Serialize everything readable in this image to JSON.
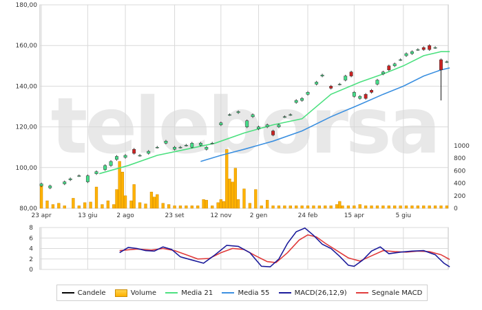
{
  "chart_data": [
    {
      "type": "line",
      "panel": "price",
      "title": "",
      "watermark": "teleborsa",
      "ylim": [
        80,
        180
      ],
      "y_ticks": [
        "80,00",
        "100,00",
        "120,00",
        "140,00",
        "160,00",
        "180,00"
      ],
      "volume_ylim": [
        0,
        1000
      ],
      "volume_ticks": [
        "0",
        "200",
        "400",
        "600",
        "800",
        "1000"
      ],
      "x_ticks": [
        "23 apr",
        "13 giu",
        "2 ago",
        "23 set",
        "12 nov",
        "2 gen",
        "24 feb",
        "15 apr",
        "5 giu"
      ],
      "x_tick_index": [
        0,
        16,
        29,
        46,
        62,
        75,
        92,
        108,
        125
      ],
      "n_bars": 141,
      "candles": [
        {
          "i": 0,
          "o": 91,
          "c": 92
        },
        {
          "i": 3,
          "o": 90,
          "c": 91
        },
        {
          "i": 8,
          "o": 92,
          "c": 93
        },
        {
          "i": 10,
          "o": 94,
          "c": 94.5
        },
        {
          "i": 13,
          "o": 96,
          "c": 96
        },
        {
          "i": 16,
          "o": 93,
          "c": 96
        },
        {
          "i": 19,
          "o": 97,
          "c": 98
        },
        {
          "i": 22,
          "o": 99,
          "c": 101
        },
        {
          "i": 24,
          "o": 101,
          "c": 103
        },
        {
          "i": 26,
          "o": 104,
          "c": 105.5
        },
        {
          "i": 29,
          "o": 105,
          "c": 106
        },
        {
          "i": 32,
          "o": 109,
          "c": 107
        },
        {
          "i": 34,
          "o": 106,
          "c": 106
        },
        {
          "i": 37,
          "o": 107,
          "c": 108
        },
        {
          "i": 40,
          "o": 110,
          "c": 110
        },
        {
          "i": 43,
          "o": 112,
          "c": 113
        },
        {
          "i": 46,
          "o": 109,
          "c": 110
        },
        {
          "i": 48,
          "o": 110,
          "c": 110
        },
        {
          "i": 50,
          "o": 111,
          "c": 111
        },
        {
          "i": 52,
          "o": 110,
          "c": 112
        },
        {
          "i": 55,
          "o": 111,
          "c": 112
        },
        {
          "i": 57,
          "o": 109,
          "c": 110
        },
        {
          "i": 59,
          "o": 112,
          "c": 112
        },
        {
          "i": 62,
          "o": 121,
          "c": 122
        },
        {
          "i": 65,
          "o": 126,
          "c": 126
        },
        {
          "i": 68,
          "o": 127,
          "c": 127.5
        },
        {
          "i": 71,
          "o": 120,
          "c": 123
        },
        {
          "i": 73,
          "o": 125,
          "c": 126
        },
        {
          "i": 75,
          "o": 119,
          "c": 120
        },
        {
          "i": 78,
          "o": 120,
          "c": 121
        },
        {
          "i": 80,
          "o": 118,
          "c": 116
        },
        {
          "i": 82,
          "o": 120,
          "c": 121
        },
        {
          "i": 84,
          "o": 125,
          "c": 125
        },
        {
          "i": 86,
          "o": 126,
          "c": 126
        },
        {
          "i": 88,
          "o": 132,
          "c": 133
        },
        {
          "i": 90,
          "o": 133,
          "c": 134
        },
        {
          "i": 92,
          "o": 136,
          "c": 137
        },
        {
          "i": 95,
          "o": 141,
          "c": 142
        },
        {
          "i": 97,
          "o": 145,
          "c": 145.5
        },
        {
          "i": 100,
          "o": 140,
          "c": 139
        },
        {
          "i": 103,
          "o": 141,
          "c": 141
        },
        {
          "i": 105,
          "o": 143,
          "c": 145
        },
        {
          "i": 107,
          "o": 147,
          "c": 145
        },
        {
          "i": 108,
          "o": 135,
          "c": 137
        },
        {
          "i": 110,
          "o": 134,
          "c": 135
        },
        {
          "i": 112,
          "o": 136,
          "c": 134
        },
        {
          "i": 114,
          "o": 138,
          "c": 137
        },
        {
          "i": 116,
          "o": 141,
          "c": 143
        },
        {
          "i": 118,
          "o": 146,
          "c": 147
        },
        {
          "i": 120,
          "o": 150,
          "c": 148
        },
        {
          "i": 122,
          "o": 150,
          "c": 151
        },
        {
          "i": 124,
          "o": 153,
          "c": 153
        },
        {
          "i": 126,
          "o": 155,
          "c": 156
        },
        {
          "i": 128,
          "o": 156,
          "c": 157
        },
        {
          "i": 130,
          "o": 158,
          "c": 158
        },
        {
          "i": 132,
          "o": 159,
          "c": 158
        },
        {
          "i": 134,
          "o": 160,
          "c": 158
        },
        {
          "i": 136,
          "o": 159,
          "c": 159
        },
        {
          "i": 138,
          "o": 153,
          "c": 148
        },
        {
          "i": 140,
          "o": 152,
          "c": 152
        }
      ],
      "volume": [
        {
          "i": 0,
          "v": 380
        },
        {
          "i": 2,
          "v": 120
        },
        {
          "i": 4,
          "v": 60
        },
        {
          "i": 6,
          "v": 80
        },
        {
          "i": 8,
          "v": 40
        },
        {
          "i": 11,
          "v": 160
        },
        {
          "i": 13,
          "v": 40
        },
        {
          "i": 15,
          "v": 90
        },
        {
          "i": 17,
          "v": 100
        },
        {
          "i": 19,
          "v": 340
        },
        {
          "i": 21,
          "v": 60
        },
        {
          "i": 23,
          "v": 120
        },
        {
          "i": 25,
          "v": 60
        },
        {
          "i": 26,
          "v": 300
        },
        {
          "i": 27,
          "v": 750
        },
        {
          "i": 28,
          "v": 580
        },
        {
          "i": 29,
          "v": 200
        },
        {
          "i": 31,
          "v": 120
        },
        {
          "i": 32,
          "v": 380
        },
        {
          "i": 34,
          "v": 90
        },
        {
          "i": 36,
          "v": 70
        },
        {
          "i": 38,
          "v": 260
        },
        {
          "i": 39,
          "v": 180
        },
        {
          "i": 40,
          "v": 220
        },
        {
          "i": 42,
          "v": 80
        },
        {
          "i": 44,
          "v": 60
        },
        {
          "i": 46,
          "v": 40
        },
        {
          "i": 48,
          "v": 40
        },
        {
          "i": 50,
          "v": 40
        },
        {
          "i": 52,
          "v": 40
        },
        {
          "i": 54,
          "v": 40
        },
        {
          "i": 56,
          "v": 140
        },
        {
          "i": 57,
          "v": 130
        },
        {
          "i": 59,
          "v": 40
        },
        {
          "i": 61,
          "v": 90
        },
        {
          "i": 62,
          "v": 140
        },
        {
          "i": 63,
          "v": 110
        },
        {
          "i": 64,
          "v": 940
        },
        {
          "i": 65,
          "v": 470
        },
        {
          "i": 66,
          "v": 420
        },
        {
          "i": 67,
          "v": 640
        },
        {
          "i": 68,
          "v": 140
        },
        {
          "i": 70,
          "v": 310
        },
        {
          "i": 72,
          "v": 80
        },
        {
          "i": 74,
          "v": 300
        },
        {
          "i": 76,
          "v": 40
        },
        {
          "i": 78,
          "v": 130
        },
        {
          "i": 80,
          "v": 40
        },
        {
          "i": 82,
          "v": 40
        },
        {
          "i": 84,
          "v": 40
        },
        {
          "i": 86,
          "v": 40
        },
        {
          "i": 88,
          "v": 40
        },
        {
          "i": 90,
          "v": 40
        },
        {
          "i": 92,
          "v": 40
        },
        {
          "i": 94,
          "v": 40
        },
        {
          "i": 96,
          "v": 40
        },
        {
          "i": 98,
          "v": 40
        },
        {
          "i": 100,
          "v": 40
        },
        {
          "i": 102,
          "v": 60
        },
        {
          "i": 103,
          "v": 110
        },
        {
          "i": 104,
          "v": 40
        },
        {
          "i": 106,
          "v": 40
        },
        {
          "i": 108,
          "v": 40
        },
        {
          "i": 110,
          "v": 60
        },
        {
          "i": 112,
          "v": 40
        },
        {
          "i": 114,
          "v": 40
        },
        {
          "i": 116,
          "v": 40
        },
        {
          "i": 118,
          "v": 40
        },
        {
          "i": 120,
          "v": 40
        },
        {
          "i": 122,
          "v": 40
        },
        {
          "i": 124,
          "v": 40
        },
        {
          "i": 126,
          "v": 40
        },
        {
          "i": 128,
          "v": 40
        },
        {
          "i": 130,
          "v": 40
        },
        {
          "i": 132,
          "v": 40
        },
        {
          "i": 134,
          "v": 40
        },
        {
          "i": 136,
          "v": 40
        },
        {
          "i": 138,
          "v": 40
        },
        {
          "i": 140,
          "v": 40
        }
      ],
      "ma21": [
        {
          "i": 20,
          "y": 97
        },
        {
          "i": 30,
          "y": 101
        },
        {
          "i": 40,
          "y": 106
        },
        {
          "i": 50,
          "y": 109
        },
        {
          "i": 60,
          "y": 112
        },
        {
          "i": 70,
          "y": 117
        },
        {
          "i": 80,
          "y": 121
        },
        {
          "i": 90,
          "y": 124
        },
        {
          "i": 100,
          "y": 136
        },
        {
          "i": 110,
          "y": 142
        },
        {
          "i": 118,
          "y": 146
        },
        {
          "i": 125,
          "y": 150
        },
        {
          "i": 132,
          "y": 155
        },
        {
          "i": 138,
          "y": 157
        },
        {
          "i": 141,
          "y": 157
        }
      ],
      "ma55": [
        {
          "i": 55,
          "y": 103
        },
        {
          "i": 62,
          "y": 106
        },
        {
          "i": 70,
          "y": 109
        },
        {
          "i": 80,
          "y": 113
        },
        {
          "i": 90,
          "y": 118
        },
        {
          "i": 100,
          "y": 125
        },
        {
          "i": 110,
          "y": 131
        },
        {
          "i": 118,
          "y": 136
        },
        {
          "i": 125,
          "y": 140
        },
        {
          "i": 132,
          "y": 145
        },
        {
          "i": 138,
          "y": 148
        },
        {
          "i": 141,
          "y": 149
        }
      ]
    },
    {
      "type": "line",
      "panel": "macd",
      "title": "",
      "ylim": [
        0,
        8
      ],
      "y_ticks": [
        "0",
        "2",
        "4",
        "6",
        "8"
      ],
      "macd": [
        {
          "i": 27,
          "y": 3.2
        },
        {
          "i": 30,
          "y": 4.2
        },
        {
          "i": 33,
          "y": 4.0
        },
        {
          "i": 36,
          "y": 3.6
        },
        {
          "i": 39,
          "y": 3.5
        },
        {
          "i": 42,
          "y": 4.3
        },
        {
          "i": 45,
          "y": 3.8
        },
        {
          "i": 48,
          "y": 2.4
        },
        {
          "i": 52,
          "y": 1.8
        },
        {
          "i": 56,
          "y": 1.2
        },
        {
          "i": 60,
          "y": 2.8
        },
        {
          "i": 64,
          "y": 4.6
        },
        {
          "i": 68,
          "y": 4.4
        },
        {
          "i": 72,
          "y": 3.2
        },
        {
          "i": 76,
          "y": 0.6
        },
        {
          "i": 79,
          "y": 0.5
        },
        {
          "i": 82,
          "y": 2.0
        },
        {
          "i": 85,
          "y": 5.0
        },
        {
          "i": 88,
          "y": 7.2
        },
        {
          "i": 91,
          "y": 7.9
        },
        {
          "i": 94,
          "y": 6.5
        },
        {
          "i": 97,
          "y": 4.8
        },
        {
          "i": 100,
          "y": 4.0
        },
        {
          "i": 103,
          "y": 2.5
        },
        {
          "i": 106,
          "y": 0.8
        },
        {
          "i": 108,
          "y": 0.6
        },
        {
          "i": 111,
          "y": 1.8
        },
        {
          "i": 114,
          "y": 3.5
        },
        {
          "i": 117,
          "y": 4.3
        },
        {
          "i": 120,
          "y": 3.0
        },
        {
          "i": 124,
          "y": 3.3
        },
        {
          "i": 128,
          "y": 3.5
        },
        {
          "i": 132,
          "y": 3.6
        },
        {
          "i": 136,
          "y": 2.8
        },
        {
          "i": 139,
          "y": 1.2
        },
        {
          "i": 141,
          "y": 0.5
        }
      ],
      "signal": [
        {
          "i": 27,
          "y": 3.6
        },
        {
          "i": 33,
          "y": 3.9
        },
        {
          "i": 38,
          "y": 3.7
        },
        {
          "i": 42,
          "y": 4.0
        },
        {
          "i": 46,
          "y": 3.6
        },
        {
          "i": 50,
          "y": 2.8
        },
        {
          "i": 54,
          "y": 2.0
        },
        {
          "i": 58,
          "y": 2.1
        },
        {
          "i": 62,
          "y": 3.2
        },
        {
          "i": 66,
          "y": 4.0
        },
        {
          "i": 70,
          "y": 3.8
        },
        {
          "i": 74,
          "y": 2.6
        },
        {
          "i": 78,
          "y": 1.5
        },
        {
          "i": 81,
          "y": 1.3
        },
        {
          "i": 85,
          "y": 3.2
        },
        {
          "i": 89,
          "y": 5.6
        },
        {
          "i": 92,
          "y": 6.6
        },
        {
          "i": 95,
          "y": 6.2
        },
        {
          "i": 98,
          "y": 5.0
        },
        {
          "i": 102,
          "y": 3.6
        },
        {
          "i": 106,
          "y": 2.2
        },
        {
          "i": 110,
          "y": 1.6
        },
        {
          "i": 114,
          "y": 2.6
        },
        {
          "i": 118,
          "y": 3.6
        },
        {
          "i": 122,
          "y": 3.4
        },
        {
          "i": 126,
          "y": 3.3
        },
        {
          "i": 130,
          "y": 3.5
        },
        {
          "i": 134,
          "y": 3.4
        },
        {
          "i": 138,
          "y": 2.8
        },
        {
          "i": 141,
          "y": 1.9
        }
      ]
    }
  ],
  "legend": {
    "items": [
      {
        "label": "Candele",
        "kind": "line",
        "color": "#000000"
      },
      {
        "label": "Volume",
        "kind": "box",
        "color": "#ffb200"
      },
      {
        "label": "Media 21",
        "kind": "line",
        "color": "#4be07f"
      },
      {
        "label": "Media 55",
        "kind": "line",
        "color": "#3a8fe0"
      },
      {
        "label": "MACD(26,12,9)",
        "kind": "line",
        "color": "#1a1a9a"
      },
      {
        "label": "Segnale MACD",
        "kind": "line",
        "color": "#e03a3a"
      }
    ]
  },
  "colors": {
    "up_candle": "#44dd88",
    "down_candle": "#cc2222",
    "volume_fill": "#ffb200",
    "grid": "#d9d9d9",
    "watermark": "#e8e8e8"
  }
}
